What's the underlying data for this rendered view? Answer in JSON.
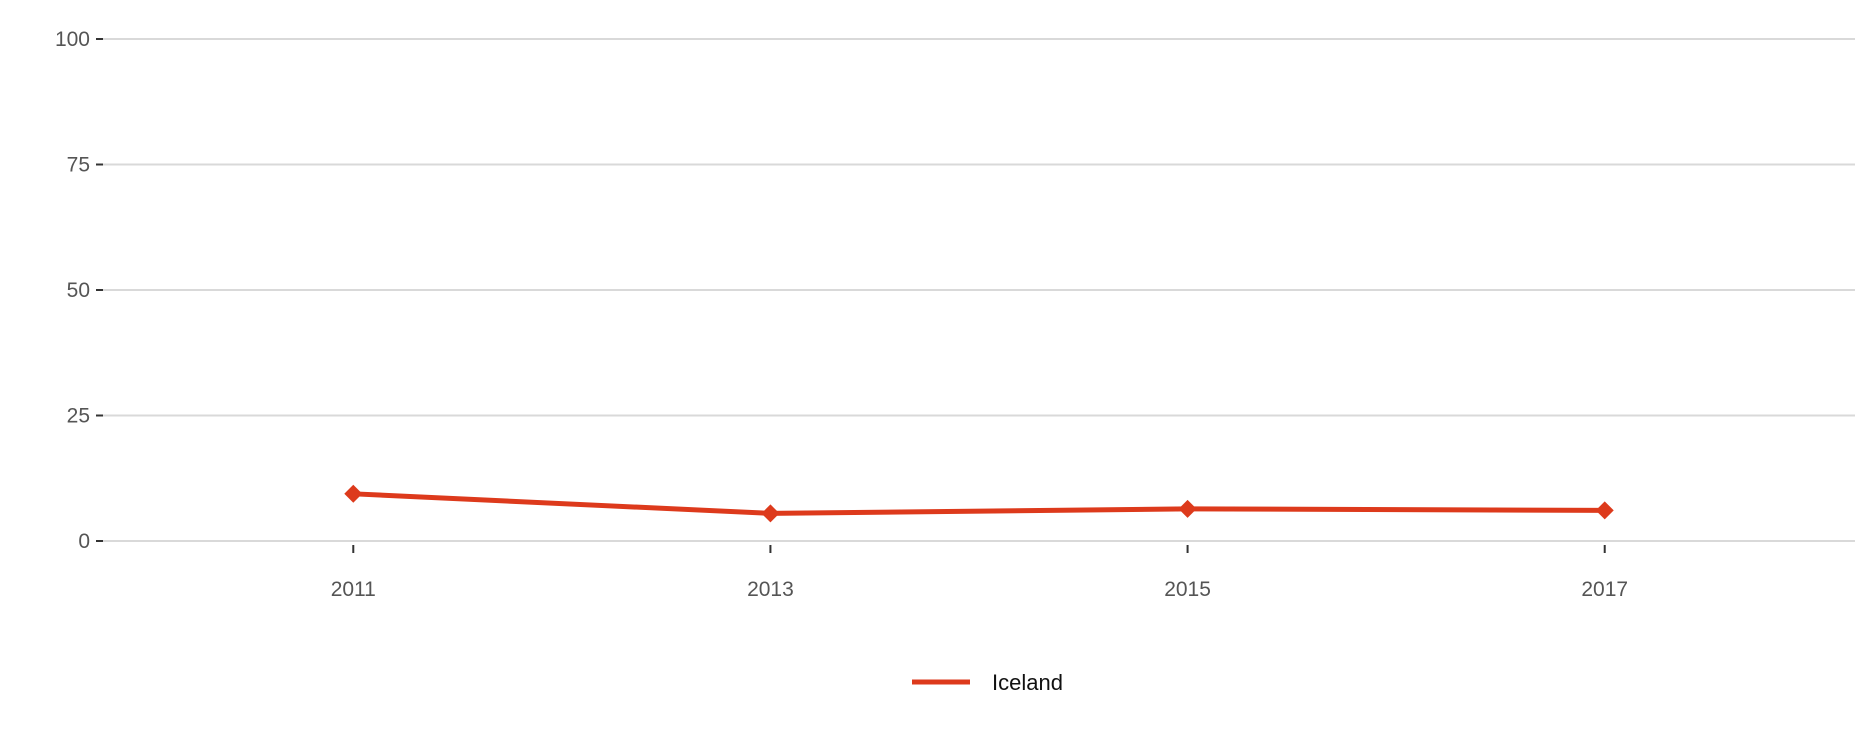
{
  "chart_data": {
    "type": "line",
    "x": [
      2011,
      2013,
      2015,
      2017
    ],
    "series": [
      {
        "name": "Iceland",
        "color": "#dd3a1c",
        "marker": "diamond",
        "values": [
          9.4,
          5.5,
          6.4,
          6.1
        ]
      }
    ],
    "x_ticks": [
      2011,
      2013,
      2015,
      2017
    ],
    "y_ticks": [
      0,
      25,
      50,
      75,
      100
    ],
    "xlim": [
      2009.8,
      2018.2
    ],
    "ylim": [
      0,
      100
    ],
    "grid": "horizontal",
    "legend_position": "bottom-center"
  },
  "colors": {
    "gridline": "#d9d9d9",
    "tick_mark": "#333333",
    "tick_text": "#555555"
  }
}
